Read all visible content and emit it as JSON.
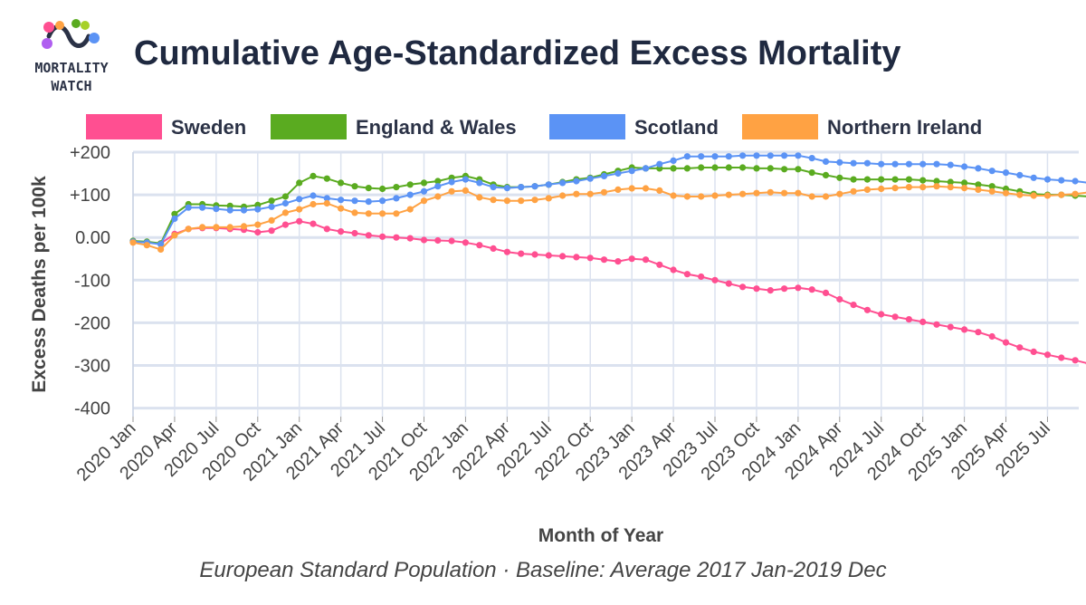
{
  "header": {
    "logo_line1": "MORTALITY",
    "logo_line2": "WATCH",
    "title": "Cumulative Age-Standardized Excess Mortality",
    "subtitle": "European Standard Population · Baseline: Average 2017 Jan-2019 Dec"
  },
  "colors": {
    "Sweden": "#ff4f91",
    "England & Wales": "#5aab20",
    "Scotland": "#5b93f5",
    "Northern Ireland": "#ffa243",
    "grid": "#dbe2ef",
    "axis_text": "#444444"
  },
  "chart_data": {
    "type": "line",
    "xlabel": "Month of Year",
    "ylabel": "Excess Deaths per 100k",
    "ylim": [
      -420,
      200
    ],
    "yticks": [
      200,
      100,
      0,
      -100,
      -200,
      -300,
      -400
    ],
    "ytick_labels": [
      "+200",
      "+100",
      "0.00",
      "-100",
      "-200",
      "-300",
      "-400"
    ],
    "xtick_labels": [
      "2020 Jan",
      "2020 Apr",
      "2020 Jul",
      "2020 Oct",
      "2021 Jan",
      "2021 Apr",
      "2021 Jul",
      "2021 Oct",
      "2022 Jan",
      "2022 Apr",
      "2022 Jul",
      "2022 Oct",
      "2023 Jan",
      "2023 Apr",
      "2023 Jul",
      "2023 Oct",
      "2024 Jan",
      "2024 Apr",
      "2024 Jul",
      "2024 Oct",
      "2025 Jan",
      "2025 Apr",
      "2025 Jul"
    ],
    "x_start": "2020 Jan",
    "x_end": "2025 Sep",
    "grid": true,
    "legend_position": "top",
    "series": [
      {
        "name": "Sweden",
        "values": [
          -8,
          -12,
          -14,
          8,
          20,
          22,
          22,
          20,
          18,
          12,
          16,
          30,
          38,
          32,
          20,
          14,
          10,
          5,
          2,
          0,
          -2,
          -6,
          -7,
          -8,
          -12,
          -18,
          -26,
          -34,
          -38,
          -40,
          -42,
          -44,
          -46,
          -48,
          -52,
          -56,
          -50,
          -52,
          -64,
          -76,
          -86,
          -92,
          -100,
          -108,
          -116,
          -120,
          -124,
          -120,
          -118,
          -122,
          -130,
          -145,
          -158,
          -170,
          -180,
          -186,
          -192,
          -198,
          -204,
          -210,
          -216,
          -222,
          -232,
          -246,
          -258,
          -268,
          -275,
          -282,
          -288,
          -296,
          -310
        ]
      },
      {
        "name": "England & Wales",
        "values": [
          -8,
          -10,
          -14,
          55,
          78,
          78,
          75,
          74,
          72,
          76,
          86,
          96,
          128,
          144,
          138,
          128,
          120,
          116,
          114,
          118,
          124,
          128,
          132,
          140,
          144,
          136,
          124,
          118,
          118,
          120,
          124,
          130,
          136,
          140,
          148,
          156,
          164,
          162,
          162,
          162,
          162,
          164,
          164,
          164,
          164,
          162,
          162,
          160,
          160,
          152,
          146,
          140,
          136,
          136,
          136,
          136,
          136,
          134,
          132,
          130,
          128,
          124,
          120,
          114,
          108,
          102,
          100,
          100,
          98,
          96,
          92
        ]
      },
      {
        "name": "Scotland",
        "values": [
          -10,
          -12,
          -16,
          44,
          70,
          70,
          67,
          64,
          64,
          66,
          72,
          80,
          90,
          98,
          92,
          88,
          86,
          84,
          86,
          92,
          100,
          108,
          120,
          130,
          136,
          128,
          118,
          116,
          118,
          120,
          124,
          128,
          132,
          138,
          144,
          150,
          156,
          162,
          172,
          180,
          190,
          190,
          190,
          190,
          192,
          192,
          192,
          192,
          192,
          186,
          178,
          176,
          174,
          174,
          172,
          172,
          172,
          172,
          172,
          170,
          166,
          162,
          156,
          152,
          146,
          140,
          136,
          134,
          132,
          128,
          124
        ]
      },
      {
        "name": "Northern Ireland",
        "values": [
          -12,
          -18,
          -28,
          5,
          20,
          24,
          24,
          24,
          26,
          30,
          40,
          58,
          66,
          78,
          80,
          68,
          58,
          56,
          56,
          56,
          66,
          86,
          96,
          108,
          110,
          94,
          88,
          86,
          86,
          88,
          92,
          98,
          102,
          102,
          106,
          112,
          115,
          115,
          110,
          98,
          96,
          96,
          98,
          100,
          102,
          104,
          106,
          104,
          104,
          96,
          96,
          102,
          108,
          112,
          114,
          116,
          118,
          118,
          120,
          118,
          116,
          112,
          108,
          104,
          100,
          98,
          98,
          100,
          102,
          106,
          108
        ]
      }
    ]
  }
}
